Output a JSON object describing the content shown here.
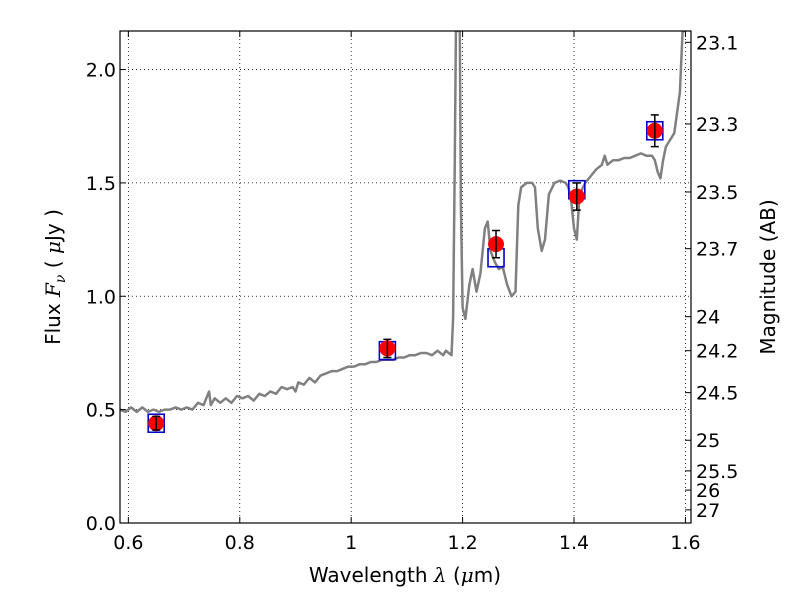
{
  "chart_data": {
    "type": "scatter",
    "xlabel_text": "Wavelength",
    "xlabel_symbol": "λ",
    "xlabel_unit_open": "(",
    "xlabel_unit_mu": "μ",
    "xlabel_unit_rest": "m)",
    "ylabel_text": "Flux",
    "ylabel_symbol_main": "F",
    "ylabel_symbol_sub": "ν",
    "ylabel_unit_open": "(",
    "ylabel_unit_mu": "μ",
    "ylabel_unit_rest": "Jy )",
    "y2label": "Magnitude (AB)",
    "xlim": [
      0.585,
      1.61
    ],
    "ylim": [
      0.0,
      2.17
    ],
    "x_ticks": [
      {
        "value": 0.6,
        "label": "0.6"
      },
      {
        "value": 0.8,
        "label": "0.8"
      },
      {
        "value": 1.0,
        "label": "1"
      },
      {
        "value": 1.2,
        "label": "1.2"
      },
      {
        "value": 1.4,
        "label": "1.4"
      },
      {
        "value": 1.6,
        "label": "1.6"
      }
    ],
    "y_ticks": [
      {
        "value": 0.0,
        "label": "0.0"
      },
      {
        "value": 0.5,
        "label": "0.5"
      },
      {
        "value": 1.0,
        "label": "1.0"
      },
      {
        "value": 1.5,
        "label": "1.5"
      },
      {
        "value": 2.0,
        "label": "2.0"
      }
    ],
    "y2_ticks": [
      {
        "flux": 2.12,
        "label": "23.1"
      },
      {
        "flux": 1.76,
        "label": "23.3"
      },
      {
        "flux": 1.46,
        "label": "23.5"
      },
      {
        "flux": 1.21,
        "label": "23.7"
      },
      {
        "flux": 0.91,
        "label": "24"
      },
      {
        "flux": 0.76,
        "label": "24.2"
      },
      {
        "flux": 0.575,
        "label": "24.5"
      },
      {
        "flux": 0.365,
        "label": "25"
      },
      {
        "flux": 0.23,
        "label": "25.5"
      },
      {
        "flux": 0.145,
        "label": "26"
      },
      {
        "flux": 0.058,
        "label": "27"
      }
    ],
    "grid": true,
    "series": [
      {
        "kind": "model",
        "color": "#808080",
        "points": [
          [
            0.585,
            0.5
          ],
          [
            0.595,
            0.49
          ],
          [
            0.605,
            0.51
          ],
          [
            0.615,
            0.49
          ],
          [
            0.625,
            0.51
          ],
          [
            0.635,
            0.49
          ],
          [
            0.645,
            0.5
          ],
          [
            0.655,
            0.49
          ],
          [
            0.665,
            0.5
          ],
          [
            0.675,
            0.5
          ],
          [
            0.685,
            0.51
          ],
          [
            0.695,
            0.5
          ],
          [
            0.705,
            0.51
          ],
          [
            0.715,
            0.5
          ],
          [
            0.725,
            0.53
          ],
          [
            0.735,
            0.52
          ],
          [
            0.74,
            0.55
          ],
          [
            0.745,
            0.58
          ],
          [
            0.748,
            0.52
          ],
          [
            0.755,
            0.55
          ],
          [
            0.765,
            0.53
          ],
          [
            0.775,
            0.55
          ],
          [
            0.785,
            0.53
          ],
          [
            0.795,
            0.56
          ],
          [
            0.805,
            0.55
          ],
          [
            0.815,
            0.56
          ],
          [
            0.825,
            0.54
          ],
          [
            0.835,
            0.57
          ],
          [
            0.845,
            0.56
          ],
          [
            0.855,
            0.58
          ],
          [
            0.865,
            0.57
          ],
          [
            0.875,
            0.6
          ],
          [
            0.885,
            0.59
          ],
          [
            0.895,
            0.6
          ],
          [
            0.9,
            0.58
          ],
          [
            0.905,
            0.62
          ],
          [
            0.915,
            0.61
          ],
          [
            0.925,
            0.64
          ],
          [
            0.935,
            0.62
          ],
          [
            0.945,
            0.65
          ],
          [
            0.955,
            0.66
          ],
          [
            0.965,
            0.67
          ],
          [
            0.975,
            0.67
          ],
          [
            0.985,
            0.68
          ],
          [
            0.995,
            0.69
          ],
          [
            1.005,
            0.69
          ],
          [
            1.015,
            0.7
          ],
          [
            1.025,
            0.7
          ],
          [
            1.035,
            0.71
          ],
          [
            1.045,
            0.71
          ],
          [
            1.055,
            0.72
          ],
          [
            1.065,
            0.72
          ],
          [
            1.075,
            0.72
          ],
          [
            1.085,
            0.73
          ],
          [
            1.095,
            0.73
          ],
          [
            1.105,
            0.74
          ],
          [
            1.115,
            0.74
          ],
          [
            1.125,
            0.75
          ],
          [
            1.135,
            0.75
          ],
          [
            1.145,
            0.74
          ],
          [
            1.155,
            0.76
          ],
          [
            1.165,
            0.74
          ],
          [
            1.17,
            0.76
          ],
          [
            1.175,
            0.75
          ],
          [
            1.18,
            0.74
          ],
          [
            1.183,
            0.9
          ],
          [
            1.186,
            1.6
          ],
          [
            1.188,
            2.17
          ],
          [
            1.195,
            2.17
          ],
          [
            1.197,
            1.4
          ],
          [
            1.2,
            0.95
          ],
          [
            1.205,
            0.9
          ],
          [
            1.212,
            1.05
          ],
          [
            1.218,
            1.12
          ],
          [
            1.225,
            1.02
          ],
          [
            1.232,
            1.1
          ],
          [
            1.24,
            1.3
          ],
          [
            1.245,
            1.33
          ],
          [
            1.25,
            1.2
          ],
          [
            1.258,
            1.15
          ],
          [
            1.265,
            1.12
          ],
          [
            1.272,
            1.13
          ],
          [
            1.28,
            1.05
          ],
          [
            1.288,
            1.0
          ],
          [
            1.295,
            1.02
          ],
          [
            1.3,
            1.4
          ],
          [
            1.305,
            1.48
          ],
          [
            1.315,
            1.5
          ],
          [
            1.325,
            1.5
          ],
          [
            1.33,
            1.48
          ],
          [
            1.335,
            1.3
          ],
          [
            1.342,
            1.2
          ],
          [
            1.348,
            1.25
          ],
          [
            1.355,
            1.45
          ],
          [
            1.365,
            1.5
          ],
          [
            1.375,
            1.51
          ],
          [
            1.385,
            1.5
          ],
          [
            1.39,
            1.48
          ],
          [
            1.395,
            1.42
          ],
          [
            1.4,
            1.3
          ],
          [
            1.405,
            1.25
          ],
          [
            1.41,
            1.45
          ],
          [
            1.42,
            1.5
          ],
          [
            1.43,
            1.53
          ],
          [
            1.44,
            1.56
          ],
          [
            1.45,
            1.58
          ],
          [
            1.455,
            1.62
          ],
          [
            1.46,
            1.58
          ],
          [
            1.47,
            1.6
          ],
          [
            1.48,
            1.6
          ],
          [
            1.49,
            1.61
          ],
          [
            1.5,
            1.61
          ],
          [
            1.51,
            1.62
          ],
          [
            1.52,
            1.63
          ],
          [
            1.53,
            1.62
          ],
          [
            1.54,
            1.62
          ],
          [
            1.545,
            1.6
          ],
          [
            1.55,
            1.55
          ],
          [
            1.555,
            1.52
          ],
          [
            1.56,
            1.6
          ],
          [
            1.565,
            1.66
          ],
          [
            1.57,
            1.68
          ],
          [
            1.575,
            1.7
          ],
          [
            1.58,
            1.72
          ],
          [
            1.59,
            1.9
          ],
          [
            1.595,
            2.17
          ],
          [
            1.6,
            2.17
          ]
        ]
      },
      {
        "kind": "model_photometry",
        "color": "#0000cc",
        "points": [
          [
            0.65,
            0.44
          ],
          [
            1.065,
            0.76
          ],
          [
            1.26,
            1.17
          ],
          [
            1.405,
            1.47
          ],
          [
            1.545,
            1.73
          ]
        ]
      },
      {
        "kind": "observed",
        "color": "#ff0000",
        "points": [
          {
            "x": 0.65,
            "y": 0.44,
            "yerr": 0.03
          },
          {
            "x": 1.065,
            "y": 0.77,
            "yerr": 0.04
          },
          {
            "x": 1.26,
            "y": 1.23,
            "yerr": 0.06
          },
          {
            "x": 1.405,
            "y": 1.44,
            "yerr": 0.06
          },
          {
            "x": 1.545,
            "y": 1.73,
            "yerr": 0.07
          }
        ]
      }
    ]
  }
}
